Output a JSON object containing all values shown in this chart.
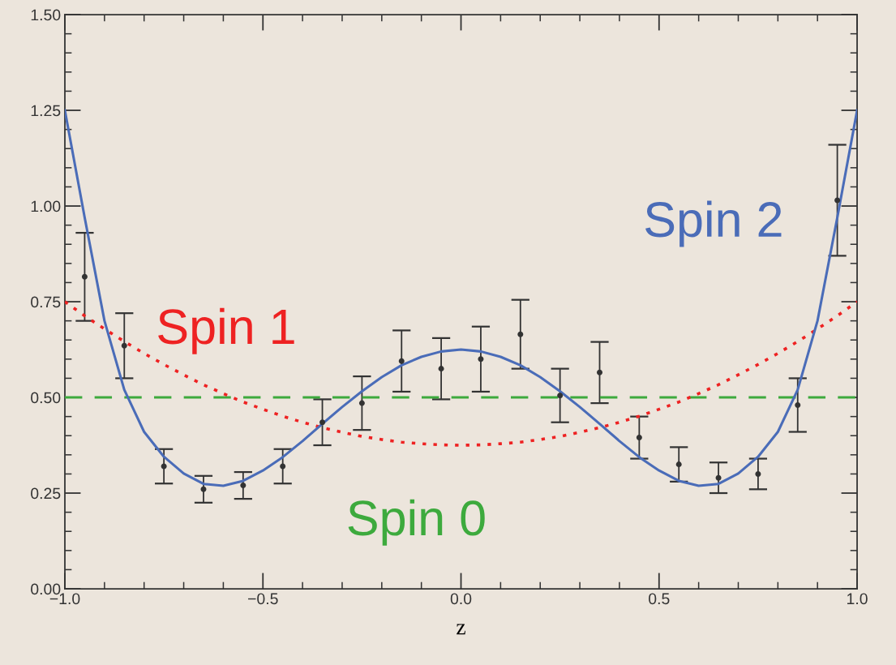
{
  "chart_data": {
    "type": "line",
    "xlabel": "z",
    "xlim": [
      -1.0,
      1.0
    ],
    "xticks": [
      {
        "value": -1.0,
        "label": "−1.0"
      },
      {
        "value": -0.5,
        "label": "−0.5"
      },
      {
        "value": 0.0,
        "label": "0.0"
      },
      {
        "value": 0.5,
        "label": "0.5"
      },
      {
        "value": 1.0,
        "label": "1.0"
      }
    ],
    "ylim": [
      0.0,
      1.5
    ],
    "yticks": [
      {
        "value": 0.0,
        "label": "0.00"
      },
      {
        "value": 0.25,
        "label": "0.25"
      },
      {
        "value": 0.5,
        "label": "0.50"
      },
      {
        "value": 0.75,
        "label": "0.75"
      },
      {
        "value": 1.0,
        "label": "1.00"
      },
      {
        "value": 1.25,
        "label": "1.25"
      },
      {
        "value": 1.5,
        "label": "1.50"
      }
    ],
    "grid": false,
    "legend": false,
    "series": [
      {
        "name": "Spin 0",
        "line_style": "dashed",
        "color": "#3daa3d",
        "x": [
          -1.0,
          1.0
        ],
        "values": [
          0.5,
          0.5
        ]
      },
      {
        "name": "Spin 1",
        "line_style": "dotted",
        "color": "#ee2222",
        "x": [
          -1.0,
          -0.95,
          -0.9,
          -0.85,
          -0.8,
          -0.75,
          -0.7,
          -0.65,
          -0.6,
          -0.55,
          -0.5,
          -0.45,
          -0.4,
          -0.35,
          -0.3,
          -0.25,
          -0.2,
          -0.15,
          -0.1,
          -0.05,
          0.0,
          0.05,
          0.1,
          0.15,
          0.2,
          0.25,
          0.3,
          0.35,
          0.4,
          0.45,
          0.5,
          0.55,
          0.6,
          0.65,
          0.7,
          0.75,
          0.8,
          0.85,
          0.9,
          0.95,
          1.0
        ],
        "values": [
          0.75,
          0.713,
          0.679,
          0.646,
          0.615,
          0.586,
          0.559,
          0.533,
          0.51,
          0.488,
          0.469,
          0.451,
          0.435,
          0.421,
          0.409,
          0.398,
          0.39,
          0.383,
          0.379,
          0.376,
          0.375,
          0.376,
          0.379,
          0.383,
          0.39,
          0.398,
          0.409,
          0.421,
          0.435,
          0.451,
          0.469,
          0.488,
          0.51,
          0.533,
          0.559,
          0.586,
          0.615,
          0.646,
          0.679,
          0.713,
          0.75
        ]
      },
      {
        "name": "Spin 2",
        "line_style": "solid",
        "color": "#4a6cb8",
        "x": [
          -1.0,
          -0.95,
          -0.9,
          -0.85,
          -0.8,
          -0.75,
          -0.7,
          -0.65,
          -0.6,
          -0.55,
          -0.5,
          -0.45,
          -0.4,
          -0.35,
          -0.3,
          -0.25,
          -0.2,
          -0.15,
          -0.1,
          -0.05,
          0.0,
          0.05,
          0.1,
          0.15,
          0.2,
          0.25,
          0.3,
          0.35,
          0.4,
          0.45,
          0.5,
          0.55,
          0.6,
          0.65,
          0.7,
          0.75,
          0.8,
          0.85,
          0.9,
          0.95,
          1.0
        ],
        "values": [
          1.25,
          0.97,
          0.7,
          0.52,
          0.41,
          0.345,
          0.301,
          0.274,
          0.269,
          0.282,
          0.309,
          0.344,
          0.386,
          0.431,
          0.475,
          0.516,
          0.553,
          0.584,
          0.606,
          0.62,
          0.625,
          0.62,
          0.606,
          0.584,
          0.553,
          0.516,
          0.475,
          0.431,
          0.386,
          0.344,
          0.309,
          0.282,
          0.269,
          0.274,
          0.301,
          0.345,
          0.41,
          0.52,
          0.7,
          0.97,
          1.25
        ]
      },
      {
        "type": "scatter",
        "marker": "circle",
        "color": "#333333",
        "x": [
          -0.95,
          -0.85,
          -0.75,
          -0.65,
          -0.55,
          -0.45,
          -0.35,
          -0.25,
          -0.15,
          -0.05,
          0.05,
          0.15,
          0.25,
          0.35,
          0.45,
          0.55,
          0.65,
          0.75,
          0.85,
          0.95
        ],
        "values": [
          0.815,
          0.635,
          0.32,
          0.26,
          0.27,
          0.32,
          0.435,
          0.485,
          0.595,
          0.575,
          0.6,
          0.665,
          0.505,
          0.565,
          0.395,
          0.325,
          0.29,
          0.3,
          0.48,
          1.015
        ],
        "errors": [
          [
            0.7,
            0.93
          ],
          [
            0.55,
            0.72
          ],
          [
            0.275,
            0.365
          ],
          [
            0.225,
            0.295
          ],
          [
            0.235,
            0.305
          ],
          [
            0.275,
            0.365
          ],
          [
            0.375,
            0.495
          ],
          [
            0.415,
            0.555
          ],
          [
            0.515,
            0.675
          ],
          [
            0.495,
            0.655
          ],
          [
            0.515,
            0.685
          ],
          [
            0.575,
            0.755
          ],
          [
            0.435,
            0.575
          ],
          [
            0.485,
            0.645
          ],
          [
            0.34,
            0.45
          ],
          [
            0.28,
            0.37
          ],
          [
            0.25,
            0.33
          ],
          [
            0.26,
            0.34
          ],
          [
            0.41,
            0.55
          ],
          [
            0.87,
            1.16
          ]
        ]
      }
    ]
  }
}
